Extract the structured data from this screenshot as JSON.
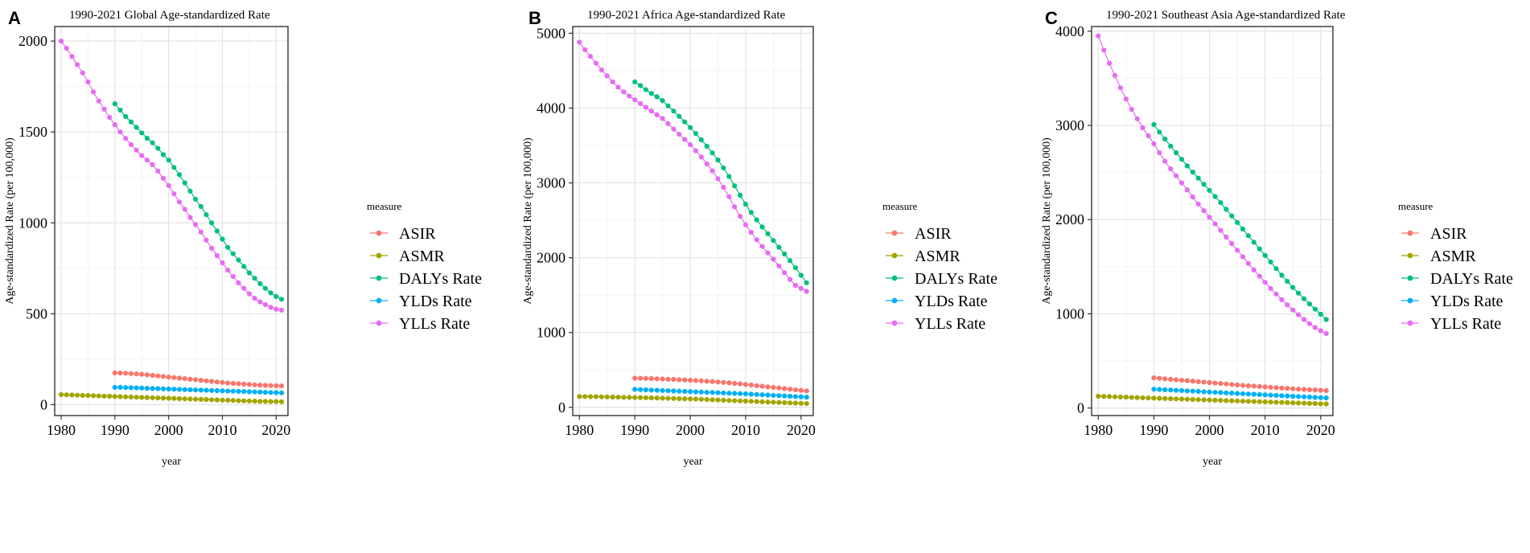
{
  "chart_data": [
    {
      "panel_label": "A",
      "type": "line",
      "title": "1990-2021 Global Age-standardized Rate",
      "xlabel": "year",
      "ylabel": "Age-standardized Rate (per 100,000)",
      "xlim": [
        1978.8,
        2022.2
      ],
      "ylim": [
        -60,
        2080
      ],
      "xticks": [
        "1980",
        "1990",
        "2000",
        "2010",
        "2020"
      ],
      "xtick_values": [
        1980,
        1990,
        2000,
        2010,
        2020
      ],
      "yticks": [
        "0",
        "500",
        "1000",
        "1500",
        "2000"
      ],
      "ytick_values": [
        0,
        500,
        1000,
        1500,
        2000
      ],
      "grid": true,
      "legend_title": "measure",
      "legend_position": "right",
      "series": [
        {
          "name": "ASIR",
          "color": "#F8766D",
          "start": 1990,
          "values": [
            175,
            174,
            173,
            171,
            169,
            167,
            164,
            161,
            158,
            155,
            152,
            149,
            146,
            143,
            140,
            137,
            134,
            131,
            128,
            125,
            122,
            119,
            117,
            115,
            113,
            111,
            109,
            107,
            106,
            105,
            104,
            103
          ]
        },
        {
          "name": "ASMR",
          "color": "#A3A500",
          "start": 1980,
          "values": [
            55,
            54,
            53,
            52,
            51,
            50,
            49,
            48,
            47,
            46,
            45,
            44,
            43,
            42,
            41,
            40,
            39,
            38,
            37,
            36,
            35,
            34,
            33,
            32,
            31,
            30,
            29,
            28,
            27,
            26,
            25,
            24,
            23,
            22,
            21,
            20,
            19,
            18,
            18,
            17,
            17,
            16
          ]
        },
        {
          "name": "DALYs Rate",
          "color": "#00BF7D",
          "start": 1990,
          "values": [
            1655,
            1620,
            1585,
            1555,
            1525,
            1495,
            1465,
            1440,
            1410,
            1375,
            1345,
            1305,
            1265,
            1220,
            1175,
            1130,
            1090,
            1045,
            1000,
            955,
            910,
            865,
            830,
            795,
            760,
            725,
            695,
            665,
            640,
            615,
            595,
            580
          ]
        },
        {
          "name": "YLDs Rate",
          "color": "#00B0F6",
          "start": 1990,
          "values": [
            95,
            95,
            94,
            93,
            92,
            91,
            90,
            89,
            88,
            87,
            86,
            85,
            84,
            83,
            82,
            81,
            80,
            79,
            78,
            77,
            76,
            75,
            74,
            73,
            72,
            71,
            70,
            69,
            68,
            67,
            66,
            65
          ]
        },
        {
          "name": "YLLs Rate",
          "color": "#E76BF3",
          "start": 1980,
          "values": [
            2000,
            1960,
            1915,
            1870,
            1825,
            1775,
            1720,
            1670,
            1625,
            1580,
            1540,
            1500,
            1465,
            1430,
            1400,
            1370,
            1345,
            1320,
            1285,
            1245,
            1205,
            1160,
            1115,
            1075,
            1030,
            990,
            950,
            905,
            860,
            820,
            780,
            740,
            705,
            670,
            640,
            610,
            585,
            565,
            550,
            535,
            525,
            520
          ]
        }
      ]
    },
    {
      "panel_label": "B",
      "type": "line",
      "title": "1990-2021 Africa Age-standardized Rate",
      "xlabel": "year",
      "ylabel": "Age-standardized Rate (per 100,000)",
      "xlim": [
        1978.8,
        2022.2
      ],
      "ylim": [
        -110,
        5090
      ],
      "xticks": [
        "1980",
        "1990",
        "2000",
        "2010",
        "2020"
      ],
      "xtick_values": [
        1980,
        1990,
        2000,
        2010,
        2020
      ],
      "yticks": [
        "0",
        "1000",
        "2000",
        "3000",
        "4000",
        "5000"
      ],
      "ytick_values": [
        0,
        1000,
        2000,
        3000,
        4000,
        5000
      ],
      "grid": true,
      "legend_title": "measure",
      "legend_position": "right",
      "series": [
        {
          "name": "ASIR",
          "color": "#F8766D",
          "start": 1990,
          "values": [
            390,
            388,
            386,
            384,
            381,
            378,
            375,
            372,
            369,
            366,
            362,
            358,
            354,
            349,
            344,
            339,
            333,
            327,
            320,
            313,
            306,
            298,
            290,
            282,
            274,
            266,
            258,
            250,
            242,
            234,
            227,
            220
          ]
        },
        {
          "name": "ASMR",
          "color": "#A3A500",
          "start": 1980,
          "values": [
            145,
            144,
            143,
            142,
            140,
            139,
            137,
            136,
            134,
            133,
            131,
            130,
            128,
            126,
            124,
            122,
            120,
            118,
            116,
            114,
            112,
            110,
            107,
            104,
            101,
            98,
            95,
            92,
            89,
            86,
            83,
            80,
            77,
            74,
            71,
            68,
            65,
            62,
            59,
            56,
            53,
            50
          ]
        },
        {
          "name": "DALYs Rate",
          "color": "#00BF7D",
          "start": 1990,
          "values": [
            4350,
            4300,
            4245,
            4195,
            4150,
            4100,
            4030,
            3960,
            3890,
            3815,
            3740,
            3660,
            3575,
            3490,
            3400,
            3305,
            3200,
            3085,
            2960,
            2835,
            2715,
            2605,
            2505,
            2410,
            2320,
            2230,
            2140,
            2050,
            1960,
            1865,
            1765,
            1665
          ]
        },
        {
          "name": "YLDs Rate",
          "color": "#00B0F6",
          "start": 1990,
          "values": [
            240,
            237,
            234,
            231,
            228,
            225,
            222,
            219,
            216,
            213,
            210,
            207,
            204,
            201,
            198,
            195,
            192,
            189,
            186,
            183,
            180,
            176,
            172,
            168,
            164,
            160,
            156,
            152,
            148,
            144,
            140,
            136
          ]
        },
        {
          "name": "YLLs Rate",
          "color": "#E76BF3",
          "start": 1980,
          "values": [
            4880,
            4780,
            4690,
            4600,
            4510,
            4430,
            4350,
            4280,
            4215,
            4160,
            4110,
            4060,
            4010,
            3960,
            3910,
            3860,
            3790,
            3720,
            3650,
            3580,
            3510,
            3430,
            3345,
            3255,
            3160,
            3055,
            2940,
            2815,
            2680,
            2555,
            2440,
            2340,
            2240,
            2150,
            2065,
            1980,
            1890,
            1800,
            1710,
            1630,
            1590,
            1550
          ]
        }
      ]
    },
    {
      "panel_label": "C",
      "type": "line",
      "title": "1990-2021 Southeast Asia Age-standardized Rate",
      "xlabel": "year",
      "ylabel": "Age-standardized Rate (per 100,000)",
      "xlim": [
        1978.8,
        2022.2
      ],
      "ylim": [
        -80,
        4050
      ],
      "xticks": [
        "1980",
        "1990",
        "2000",
        "2010",
        "2020"
      ],
      "xtick_values": [
        1980,
        1990,
        2000,
        2010,
        2020
      ],
      "yticks": [
        "0",
        "1000",
        "2000",
        "3000",
        "4000"
      ],
      "ytick_values": [
        0,
        1000,
        2000,
        3000,
        4000
      ],
      "grid": true,
      "legend_title": "measure",
      "legend_position": "right",
      "series": [
        {
          "name": "ASIR",
          "color": "#F8766D",
          "start": 1990,
          "values": [
            320,
            315,
            310,
            305,
            300,
            295,
            290,
            285,
            280,
            275,
            270,
            265,
            260,
            255,
            250,
            245,
            240,
            236,
            232,
            228,
            224,
            220,
            216,
            212,
            208,
            204,
            200,
            197,
            194,
            191,
            188,
            185
          ]
        },
        {
          "name": "ASMR",
          "color": "#A3A500",
          "start": 1980,
          "values": [
            125,
            123,
            121,
            119,
            117,
            115,
            113,
            111,
            109,
            107,
            105,
            103,
            101,
            99,
            97,
            95,
            93,
            91,
            89,
            87,
            85,
            83,
            81,
            79,
            77,
            75,
            73,
            71,
            69,
            67,
            65,
            63,
            61,
            59,
            57,
            55,
            53,
            51,
            49,
            47,
            45,
            43
          ]
        },
        {
          "name": "DALYs Rate",
          "color": "#00BF7D",
          "start": 1990,
          "values": [
            3010,
            2930,
            2855,
            2780,
            2710,
            2640,
            2570,
            2505,
            2440,
            2375,
            2310,
            2245,
            2180,
            2110,
            2040,
            1970,
            1900,
            1830,
            1760,
            1690,
            1620,
            1550,
            1480,
            1410,
            1345,
            1280,
            1220,
            1160,
            1105,
            1050,
            995,
            940
          ]
        },
        {
          "name": "YLDs Rate",
          "color": "#00B0F6",
          "start": 1990,
          "values": [
            200,
            197,
            194,
            191,
            188,
            185,
            182,
            179,
            176,
            173,
            170,
            167,
            164,
            161,
            158,
            155,
            152,
            149,
            146,
            143,
            140,
            137,
            134,
            131,
            128,
            125,
            122,
            119,
            116,
            113,
            110,
            107
          ]
        },
        {
          "name": "YLLs Rate",
          "color": "#E76BF3",
          "start": 1980,
          "values": [
            3950,
            3800,
            3660,
            3530,
            3400,
            3280,
            3170,
            3070,
            2975,
            2890,
            2805,
            2710,
            2620,
            2540,
            2465,
            2390,
            2315,
            2240,
            2165,
            2095,
            2025,
            1955,
            1885,
            1815,
            1745,
            1675,
            1605,
            1535,
            1465,
            1400,
            1335,
            1270,
            1210,
            1150,
            1095,
            1040,
            990,
            940,
            895,
            855,
            820,
            790
          ]
        }
      ]
    }
  ]
}
